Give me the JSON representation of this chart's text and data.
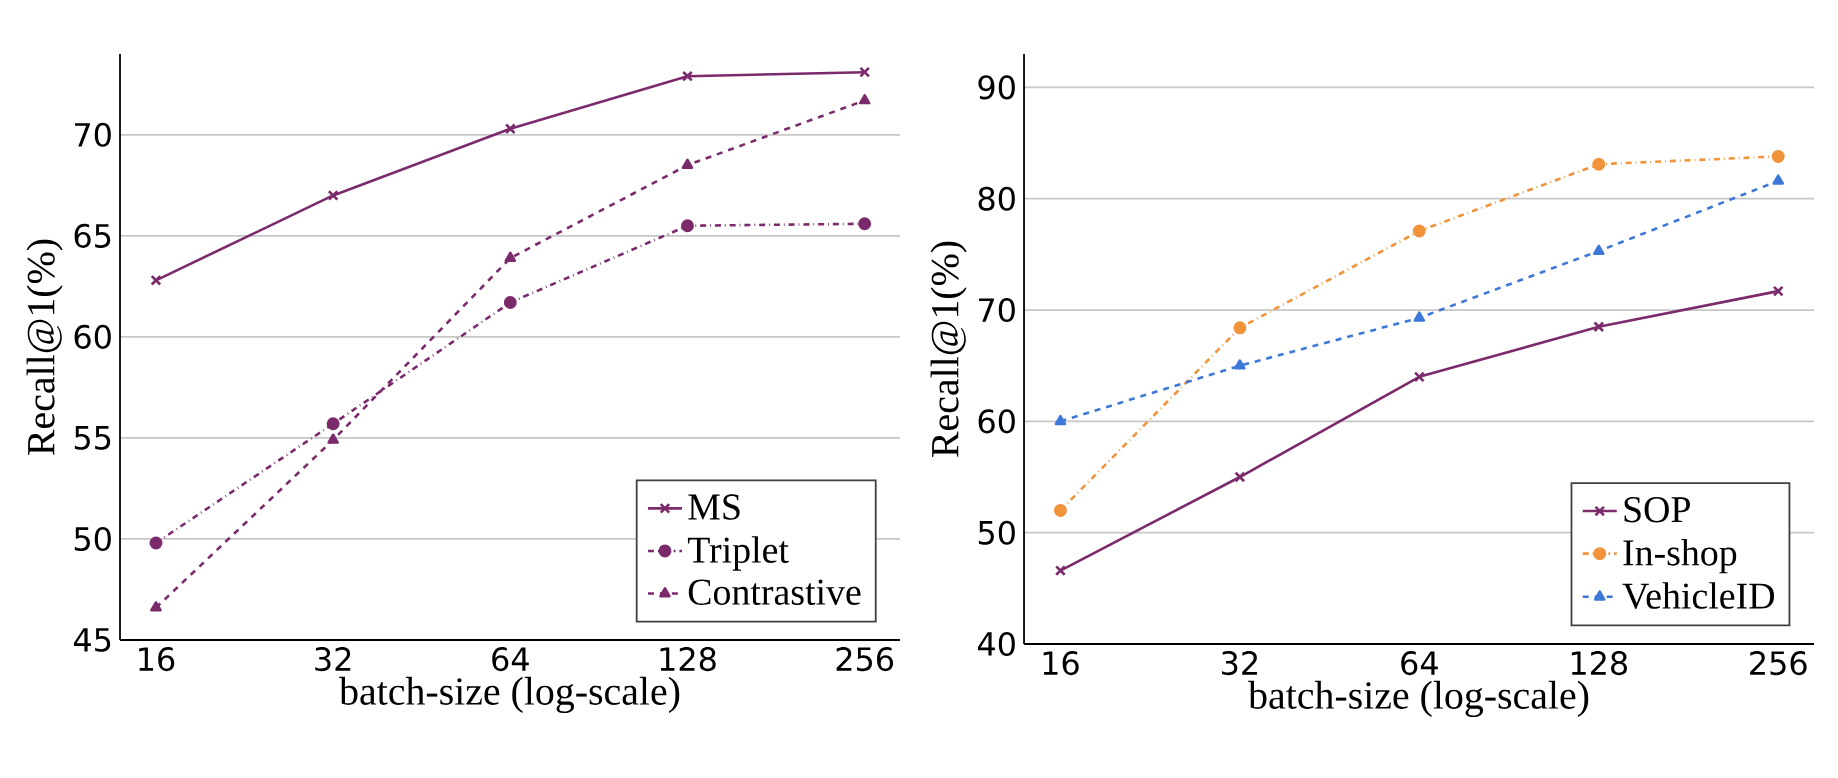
{
  "chart_data": [
    {
      "type": "line",
      "xlabel": "batch-size (log-scale)",
      "ylabel": "Recall@1(%)",
      "x": [
        16,
        32,
        64,
        128,
        256
      ],
      "xlim": [
        13.9,
        294
      ],
      "xticks": [
        16,
        32,
        64,
        128,
        256
      ],
      "ylim": [
        45,
        74
      ],
      "yticks": [
        45,
        50,
        55,
        60,
        65,
        70
      ],
      "log": "x",
      "grid": "y",
      "legend": "bottom right",
      "series": [
        {
          "name": "MS",
          "color": "#7b2a6b",
          "marker": "cross",
          "line_style": "solid",
          "values": [
            62.8,
            67.0,
            70.3,
            72.9,
            73.1
          ]
        },
        {
          "name": "Triplet",
          "color": "#7b2a6b",
          "marker": "circle",
          "line_style": "dashdot",
          "values": [
            49.8,
            55.7,
            61.7,
            65.5,
            65.6
          ]
        },
        {
          "name": "Contrastive",
          "color": "#7b2a6b",
          "marker": "triangle",
          "line_style": "dashed",
          "values": [
            46.6,
            54.9,
            63.9,
            68.5,
            71.7
          ]
        }
      ]
    },
    {
      "type": "line",
      "xlabel": "batch-size (log-scale)",
      "ylabel": "Recall@1(%)",
      "x": [
        16,
        32,
        64,
        128,
        256
      ],
      "xlim": [
        13.9,
        294
      ],
      "xticks": [
        16,
        32,
        64,
        128,
        256
      ],
      "ylim": [
        40,
        93
      ],
      "yticks": [
        40,
        50,
        60,
        70,
        80,
        90
      ],
      "log": "x",
      "grid": "y",
      "legend": "bottom right",
      "series": [
        {
          "name": "SOP",
          "color": "#7b2a6b",
          "marker": "cross",
          "line_style": "solid",
          "values": [
            46.6,
            55.0,
            64.0,
            68.5,
            71.7
          ]
        },
        {
          "name": "In-shop",
          "color": "#f0933a",
          "marker": "circle",
          "line_style": "dashdot",
          "values": [
            52.0,
            68.4,
            77.1,
            83.1,
            83.8
          ]
        },
        {
          "name": "VehicleID",
          "color": "#3d78d8",
          "marker": "triangle",
          "line_style": "dashed",
          "values": [
            60.0,
            65.0,
            69.3,
            75.3,
            81.6
          ]
        }
      ]
    }
  ]
}
